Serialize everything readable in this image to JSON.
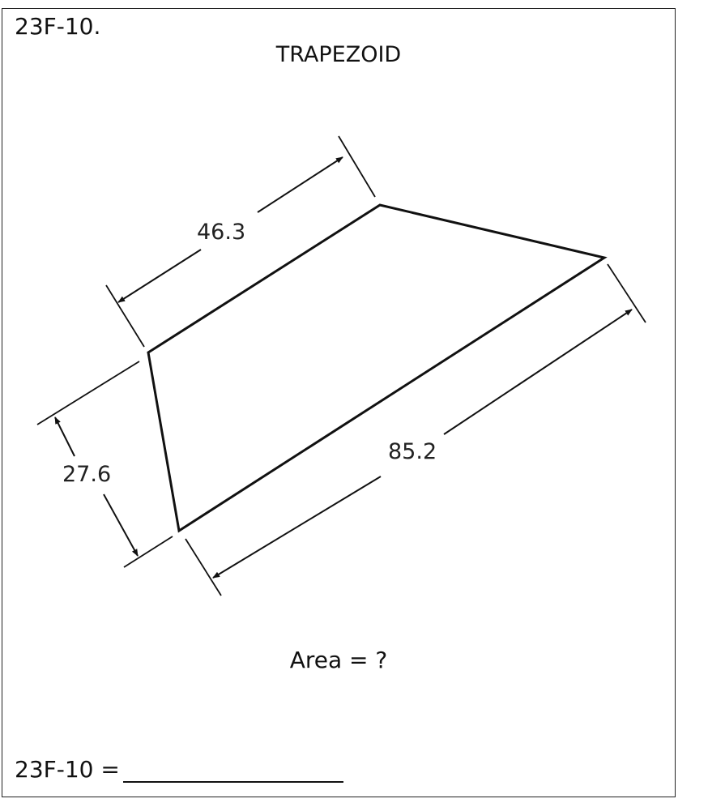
{
  "problem_id": "23F-10.",
  "title": "TRAPEZOID",
  "dimensions": {
    "top_side": "46.3",
    "height": "27.6",
    "bottom_side": "85.2"
  },
  "question": "Area = ?",
  "answer_label": "23F-10 ="
}
